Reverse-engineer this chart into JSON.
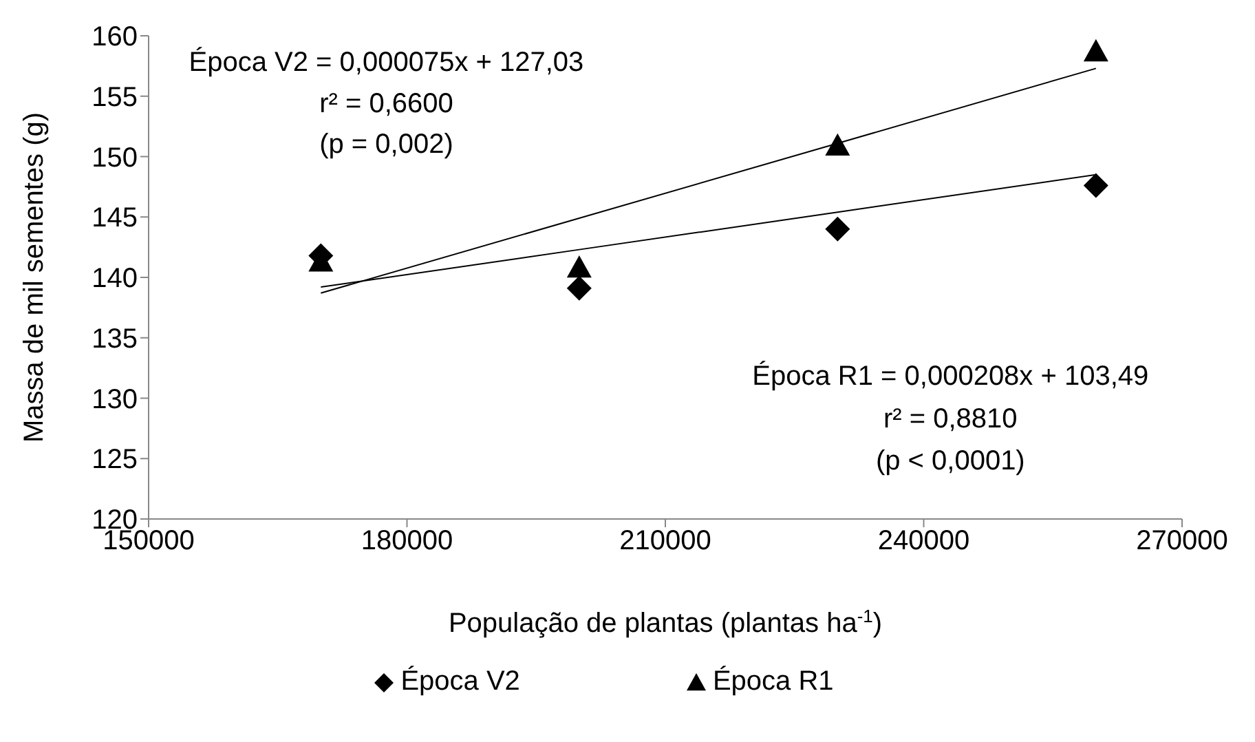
{
  "chart_data": {
    "type": "scatter",
    "xlabel": "População de plantas (plantas ha$^{-1}$)",
    "ylabel": "Massa de mil sementes (g)",
    "xlim": [
      150000,
      270000
    ],
    "xticks": [
      150000,
      180000,
      210000,
      240000,
      270000
    ],
    "ylim": [
      120,
      160
    ],
    "yticks": [
      120,
      125,
      130,
      135,
      140,
      145,
      150,
      155,
      160
    ],
    "x": [
      170000,
      200000,
      230000,
      260000
    ],
    "series": [
      {
        "name": "Época V2",
        "color": "#000000",
        "marker": "diamond",
        "values": [
          141.8,
          139.1,
          144.0,
          147.6
        ]
      },
      {
        "name": "Época R1",
        "color": "#000000",
        "marker": "triangle",
        "values": [
          141.3,
          140.8,
          150.9,
          158.7
        ]
      },
      {
        "type": "line",
        "color": "#000000",
        "marker": "none",
        "values": [
          139.2,
          142.3,
          145.4,
          148.5
        ]
      },
      {
        "type": "line",
        "color": "#000000",
        "marker": "none",
        "values": [
          138.7,
          144.9,
          151.1,
          157.3
        ]
      }
    ],
    "annotations": [
      "Época V2 = 0,000075x + 127,03",
      "r² = 0,6600",
      "(p = 0,002)",
      "Época R1 = 0,000208x + 103,49",
      "r² = 0,8810",
      "(p < 0,0001)"
    ],
    "legend": "bottom",
    "grid": false
  }
}
